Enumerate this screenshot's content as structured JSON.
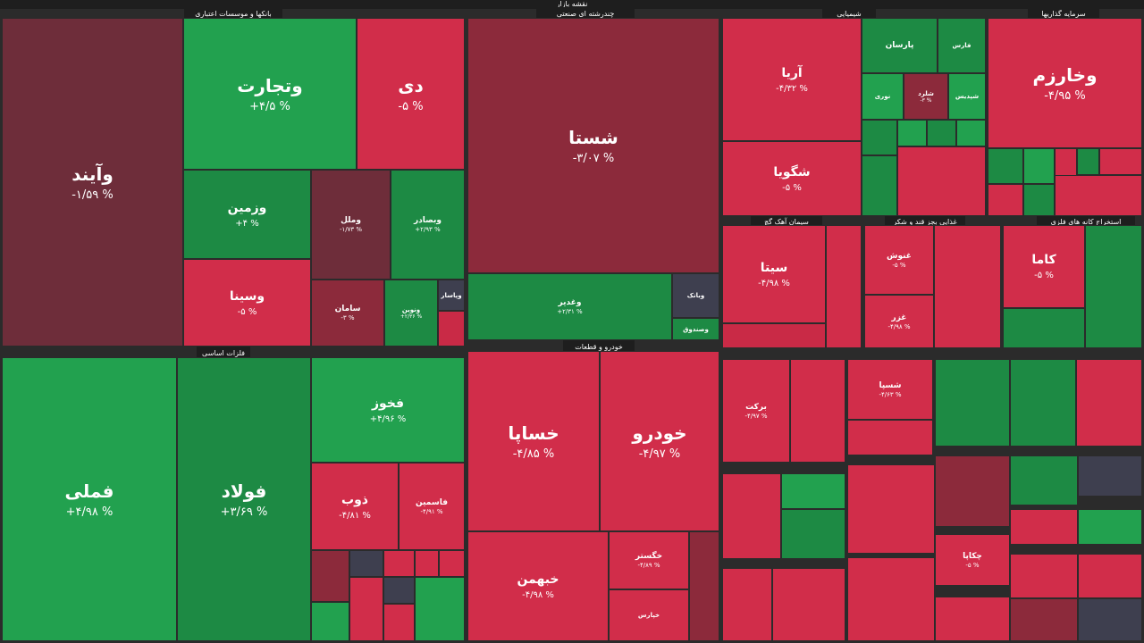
{
  "top_title": "نقشه بازار",
  "sections": {
    "banks": "بانکها و موسسات اعتباری",
    "multi": "چندرشته ای صنعتی",
    "chem": "شیمیایی",
    "invest": "سرمایه گذاریها",
    "metals": "فلزات اساسی",
    "auto": "خودرو و قطعات",
    "cement": "سیمان آهک گچ",
    "food": "غذایی بجز قند و شکر",
    "mines": "استخراج کانه های فلزی"
  },
  "cells": {
    "vaind": {
      "name": "وآیند",
      "pct": "-۱/۵۹ %"
    },
    "vtejarat": {
      "name": "وتجارت",
      "pct": "+۴/۵ %"
    },
    "di": {
      "name": "دی",
      "pct": "-۵ %"
    },
    "vzamin": {
      "name": "وزمین",
      "pct": "+۴ %"
    },
    "vmellat": {
      "name": "وملل",
      "pct": "-۱/۷۳ %"
    },
    "vbsader": {
      "name": "وبصادر",
      "pct": "+۲/۹۳ %"
    },
    "vsina": {
      "name": "وسینا",
      "pct": "-۵ %"
    },
    "saman": {
      "name": "سامان",
      "pct": "-۳ %"
    },
    "vnovin": {
      "name": "ونوین",
      "pct": "+۲/۳۶ %"
    },
    "vpasar": {
      "name": "وپاسار",
      "pct": ""
    },
    "shasta": {
      "name": "شستا",
      "pct": "-۳/۰۷ %"
    },
    "vghadir": {
      "name": "وغدیر",
      "pct": "+۲/۳۱ %"
    },
    "vbank": {
      "name": "وبانک",
      "pct": ""
    },
    "vsandogh": {
      "name": "وصندوق",
      "pct": ""
    },
    "aria": {
      "name": "آریا",
      "pct": "-۴/۳۲ %"
    },
    "shegoya": {
      "name": "شگویا",
      "pct": "-۵ %"
    },
    "parsan": {
      "name": "پارسان",
      "pct": ""
    },
    "fars": {
      "name": "فارس",
      "pct": ""
    },
    "nori": {
      "name": "نوری",
      "pct": ""
    },
    "shlord": {
      "name": "شلرد",
      "pct": "-۳ %"
    },
    "shpdis": {
      "name": "شپدیس",
      "pct": ""
    },
    "vkharazm": {
      "name": "وخارزم",
      "pct": "-۴/۹۵ %"
    },
    "fameli": {
      "name": "فملی",
      "pct": "+۴/۹۸ %"
    },
    "foolad": {
      "name": "فولاد",
      "pct": "+۳/۶۹ %"
    },
    "fakhooz": {
      "name": "فخوز",
      "pct": "+۴/۹۶ %"
    },
    "zob": {
      "name": "ذوب",
      "pct": "-۴/۸۱ %"
    },
    "fasmin": {
      "name": "فاسمین",
      "pct": "-۴/۹۱ %"
    },
    "khasapa": {
      "name": "خساپا",
      "pct": "-۴/۸۵ %"
    },
    "khodro": {
      "name": "خودرو",
      "pct": "-۴/۹۷ %"
    },
    "khbahman": {
      "name": "خبهمن",
      "pct": "-۴/۹۸ %"
    },
    "khgostar": {
      "name": "خگستر",
      "pct": "-۴/۸۹ %"
    },
    "khpars": {
      "name": "خپارس",
      "pct": ""
    },
    "sita": {
      "name": "سیتا",
      "pct": "-۴/۹۸ %"
    },
    "ghenoosh": {
      "name": "غنوش",
      "pct": "-۵ %"
    },
    "ghazar": {
      "name": "غزر",
      "pct": "-۴/۹۸ %"
    },
    "kama": {
      "name": "کاما",
      "pct": "-۵ %"
    },
    "barekat": {
      "name": "برکت",
      "pct": "-۴/۹۷ %"
    },
    "shesapa": {
      "name": "شسپا",
      "pct": "-۴/۶۳ %"
    },
    "chekapa": {
      "name": "چکاپا",
      "pct": "-۵ %"
    }
  }
}
